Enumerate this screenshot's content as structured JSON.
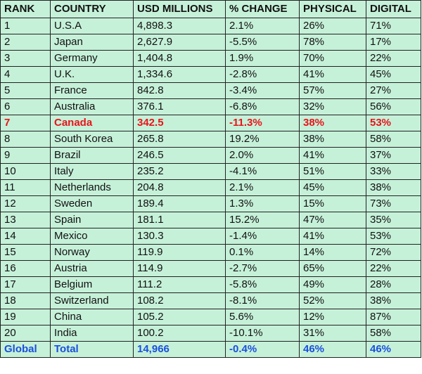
{
  "headers": [
    "RANK",
    "COUNTRY",
    "USD MILLIONS",
    "% CHANGE",
    "PHYSICAL",
    "DIGITAL"
  ],
  "rows": [
    [
      "1",
      "U.S.A",
      "4,898.3",
      "2.1%",
      "26%",
      "71%"
    ],
    [
      "2",
      "Japan",
      "2,627.9",
      "-5.5%",
      "78%",
      "17%"
    ],
    [
      "3",
      "Germany",
      "1,404.8",
      "1.9%",
      "70%",
      "22%"
    ],
    [
      "4",
      "U.K.",
      "1,334.6",
      "-2.8%",
      "41%",
      "45%"
    ],
    [
      "5",
      "France",
      "842.8",
      "-3.4%",
      "57%",
      "27%"
    ],
    [
      "6",
      "Australia",
      "376.1",
      "-6.8%",
      "32%",
      "56%"
    ],
    [
      "7",
      "Canada",
      "342.5",
      "-11.3%",
      "38%",
      "53%"
    ],
    [
      "8",
      "South Korea",
      "265.8",
      "19.2%",
      "38%",
      "58%"
    ],
    [
      "9",
      "Brazil",
      "246.5",
      "2.0%",
      "41%",
      "37%"
    ],
    [
      "10",
      "Italy",
      "235.2",
      "-4.1%",
      "51%",
      "33%"
    ],
    [
      "11",
      "Netherlands",
      "204.8",
      "2.1%",
      "45%",
      "38%"
    ],
    [
      "12",
      "Sweden",
      "189.4",
      "1.3%",
      "15%",
      "73%"
    ],
    [
      "13",
      "Spain",
      "181.1",
      "15.2%",
      "47%",
      "35%"
    ],
    [
      "14",
      "Mexico",
      "130.3",
      "-1.4%",
      "41%",
      "53%"
    ],
    [
      "15",
      "Norway",
      "119.9",
      "0.1%",
      "14%",
      "72%"
    ],
    [
      "16",
      "Austria",
      "114.9",
      "-2.7%",
      "65%",
      "22%"
    ],
    [
      "17",
      "Belgium",
      "111.2",
      "-5.8%",
      "49%",
      "28%"
    ],
    [
      "18",
      "Switzerland",
      "108.2",
      "-8.1%",
      "52%",
      "38%"
    ],
    [
      "19",
      "China",
      "105.2",
      "5.6%",
      "12%",
      "87%"
    ],
    [
      "20",
      "India",
      "100.2",
      "-10.1%",
      "31%",
      "58%"
    ]
  ],
  "total": [
    "Global",
    "Total",
    "14,966",
    "-0.4%",
    "46%",
    "46%"
  ],
  "highlight_rank": "7",
  "colors": {
    "background": "#c6f1d9",
    "highlight_text": "#e8141a",
    "total_text": "#1a4fe0",
    "border": "#222222"
  }
}
